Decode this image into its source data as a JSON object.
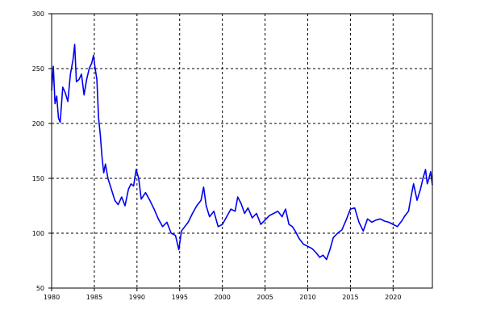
{
  "chart_data": {
    "type": "line",
    "title": "",
    "xlabel": "",
    "ylabel": "",
    "xlim": [
      1980,
      2024.6
    ],
    "ylim": [
      50,
      300
    ],
    "grid": true,
    "x_ticks": [
      1980,
      1985,
      1990,
      1995,
      2000,
      2005,
      2010,
      2015,
      2020
    ],
    "x_tick_labels": [
      "1980",
      "1985",
      "1990",
      "1995",
      "2000",
      "2005",
      "2010",
      "2015",
      "2020"
    ],
    "y_ticks": [
      50,
      100,
      150,
      200,
      250,
      300
    ],
    "y_tick_labels": [
      "50",
      "100",
      "150",
      "200",
      "250",
      "300"
    ],
    "line_color": "#0000ee",
    "series": [
      {
        "x": [
          1980.0,
          1980.2,
          1980.4,
          1980.6,
          1980.8,
          1981.0,
          1981.3,
          1981.6,
          1981.9,
          1982.2,
          1982.5,
          1982.7,
          1982.9,
          1983.2,
          1983.5,
          1983.8,
          1984.1,
          1984.4,
          1984.7,
          1984.9,
          1985.1,
          1985.3,
          1985.5,
          1985.7,
          1985.9,
          1986.1,
          1986.3,
          1986.6,
          1987.0,
          1987.4,
          1987.8,
          1988.2,
          1988.6,
          1989.0,
          1989.3,
          1989.6,
          1989.9,
          1990.2,
          1990.5,
          1991.0,
          1991.5,
          1992.0,
          1992.5,
          1993.0,
          1993.5,
          1994.0,
          1994.5,
          1994.9,
          1995.2,
          1995.6,
          1996.0,
          1996.5,
          1997.0,
          1997.5,
          1997.8,
          1998.1,
          1998.5,
          1999.0,
          1999.5,
          2000.0,
          2000.5,
          2001.0,
          2001.5,
          2001.8,
          2002.2,
          2002.6,
          2003.0,
          2003.5,
          2004.0,
          2004.5,
          2005.0,
          2005.5,
          2006.0,
          2006.5,
          2007.0,
          2007.4,
          2007.8,
          2008.2,
          2008.6,
          2009.0,
          2009.5,
          2010.0,
          2010.5,
          2011.0,
          2011.4,
          2011.8,
          2012.2,
          2012.6,
          2013.0,
          2013.5,
          2014.0,
          2014.5,
          2015.0,
          2015.5,
          2016.0,
          2016.5,
          2017.0,
          2017.5,
          2018.0,
          2018.5,
          2019.0,
          2019.5,
          2020.0,
          2020.5,
          2021.0,
          2021.4,
          2021.8,
          2022.1,
          2022.4,
          2022.8,
          2023.2,
          2023.5,
          2023.8,
          2024.0,
          2024.2,
          2024.4,
          2024.6
        ],
        "y": [
          230,
          252,
          218,
          225,
          205,
          201,
          233,
          228,
          220,
          245,
          258,
          272,
          238,
          240,
          245,
          226,
          240,
          250,
          255,
          262,
          250,
          240,
          205,
          190,
          170,
          155,
          163,
          150,
          140,
          130,
          126,
          133,
          125,
          140,
          145,
          143,
          158,
          150,
          131,
          137,
          130,
          122,
          113,
          106,
          110,
          100,
          98,
          85,
          102,
          106,
          110,
          118,
          125,
          130,
          142,
          125,
          115,
          120,
          106,
          108,
          115,
          122,
          120,
          133,
          127,
          118,
          123,
          114,
          118,
          108,
          112,
          116,
          118,
          120,
          115,
          122,
          108,
          106,
          101,
          95,
          90,
          88,
          86,
          82,
          78,
          80,
          76,
          85,
          96,
          100,
          103,
          112,
          122,
          123,
          110,
          102,
          113,
          110,
          112,
          113,
          111,
          110,
          108,
          106,
          111,
          116,
          120,
          133,
          145,
          130,
          140,
          150,
          158,
          145,
          150,
          156,
          144
        ]
      }
    ]
  }
}
